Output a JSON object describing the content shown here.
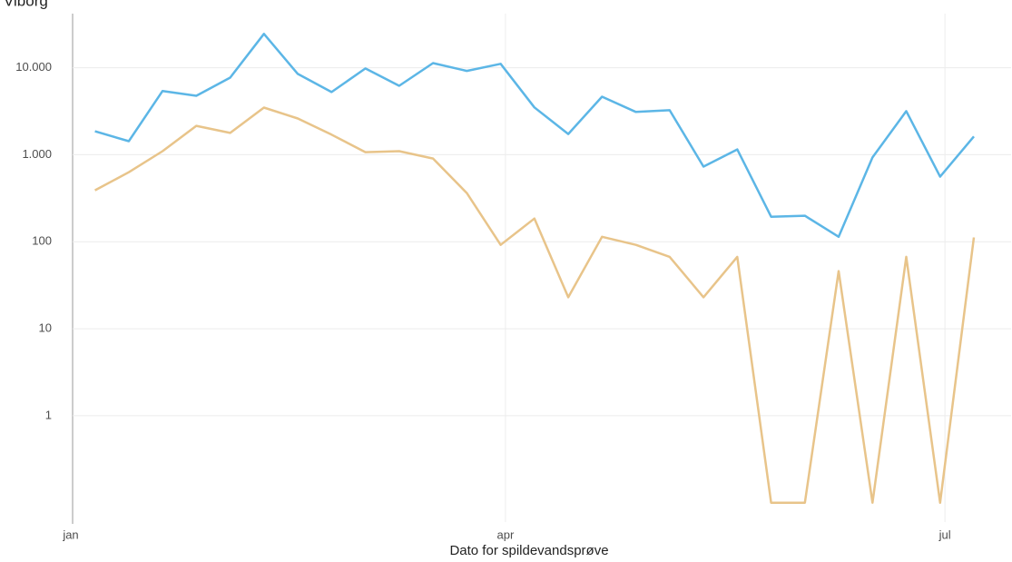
{
  "chart_data": {
    "type": "line",
    "title": "Viborg",
    "xlabel": "Dato for spildevandsprøve",
    "x": [
      5,
      12,
      19,
      26,
      33,
      40,
      47,
      54,
      61,
      68,
      75,
      82,
      89,
      96,
      103,
      110,
      117,
      124,
      131,
      138,
      145,
      152,
      159,
      166,
      173,
      180,
      187
    ],
    "series": [
      {
        "color": "#5cb6e6",
        "values": [
          1860,
          1430,
          5400,
          4760,
          7700,
          24500,
          8500,
          5250,
          9800,
          6200,
          11300,
          9200,
          11100,
          3500,
          1730,
          4650,
          3100,
          3250,
          730,
          1150,
          194,
          199,
          114,
          930,
          3170,
          560,
          1620
        ]
      },
      {
        "color": "#e8c48a",
        "values": [
          390,
          630,
          1100,
          2150,
          1780,
          3480,
          2610,
          1700,
          1070,
          1100,
          905,
          363,
          92,
          185,
          23,
          114,
          92,
          67,
          23,
          67,
          0.1,
          0.1,
          46,
          0.1,
          67,
          0.1,
          112
        ]
      }
    ],
    "xlim": [
      0,
      190
    ],
    "xticks": [
      {
        "value": 0,
        "label": "jan"
      },
      {
        "value": 90,
        "label": "apr"
      },
      {
        "value": 181,
        "label": "jul"
      }
    ],
    "ylim": [
      0.06,
      45000
    ],
    "ylog": true,
    "yticks": [
      {
        "value": 10000,
        "label": "10.000"
      },
      {
        "value": 1000,
        "label": "1.000"
      },
      100,
      10,
      1
    ],
    "grid": true
  }
}
